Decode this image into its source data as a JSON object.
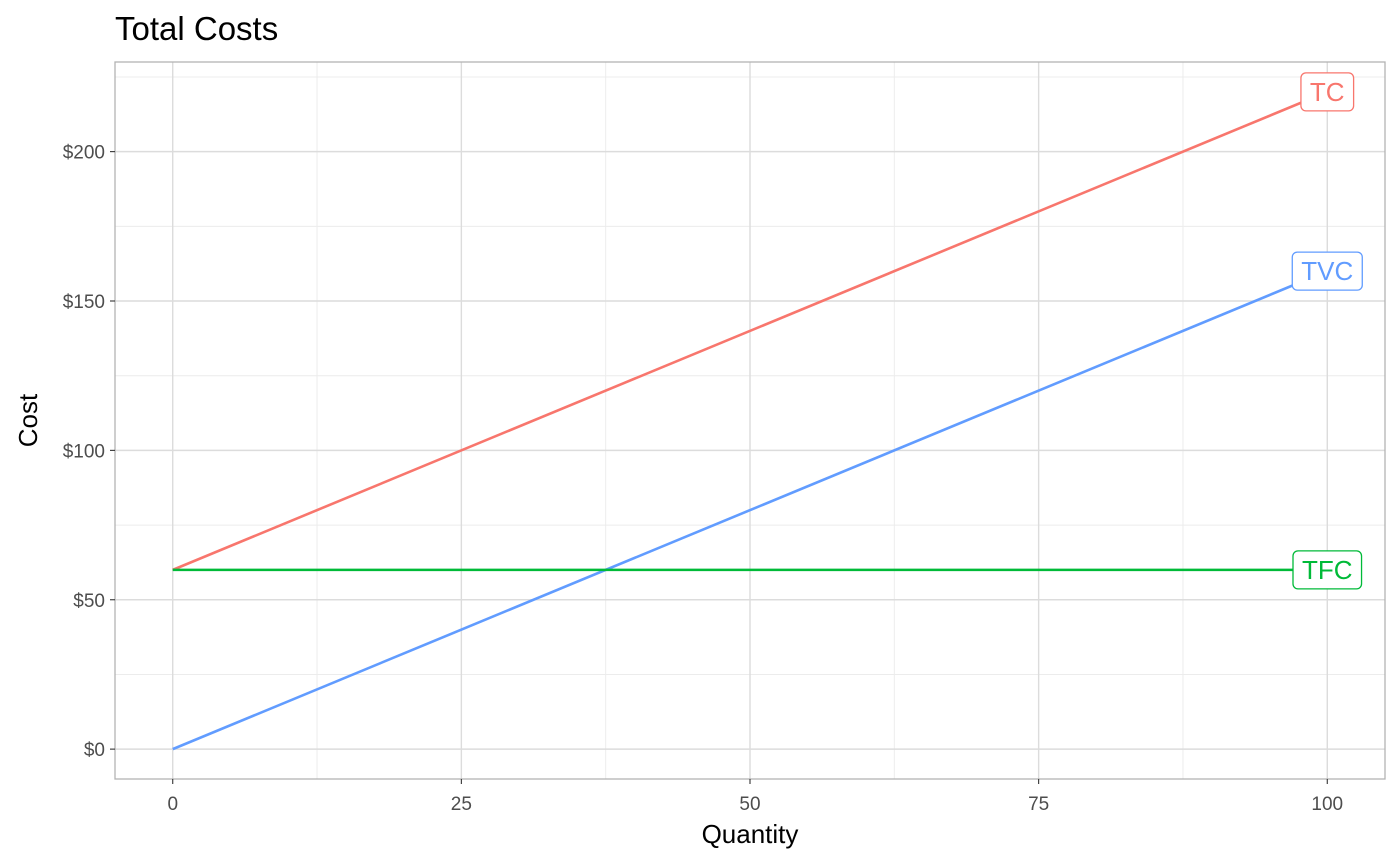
{
  "chart_data": {
    "type": "line",
    "title": "Total Costs",
    "xlabel": "Quantity",
    "ylabel": "Cost",
    "xlim": [
      -5,
      105
    ],
    "ylim": [
      -10,
      230
    ],
    "x_ticks": [
      {
        "value": 0,
        "label": "0"
      },
      {
        "value": 25,
        "label": "25"
      },
      {
        "value": 50,
        "label": "50"
      },
      {
        "value": 75,
        "label": "75"
      },
      {
        "value": 100,
        "label": "100"
      }
    ],
    "y_ticks": [
      {
        "value": 0,
        "label": "$0"
      },
      {
        "value": 50,
        "label": "$50"
      },
      {
        "value": 100,
        "label": "$100"
      },
      {
        "value": 150,
        "label": "$150"
      },
      {
        "value": 200,
        "label": "$200"
      }
    ],
    "grid": true,
    "legend": "none",
    "series": [
      {
        "name": "TC",
        "color": "#F8766D",
        "x": [
          0,
          100
        ],
        "y": [
          60,
          220
        ]
      },
      {
        "name": "TVC",
        "color": "#619CFF",
        "x": [
          0,
          100
        ],
        "y": [
          0,
          160
        ]
      },
      {
        "name": "TFC",
        "color": "#00BA38",
        "x": [
          0,
          100
        ],
        "y": [
          60,
          60
        ]
      }
    ]
  }
}
